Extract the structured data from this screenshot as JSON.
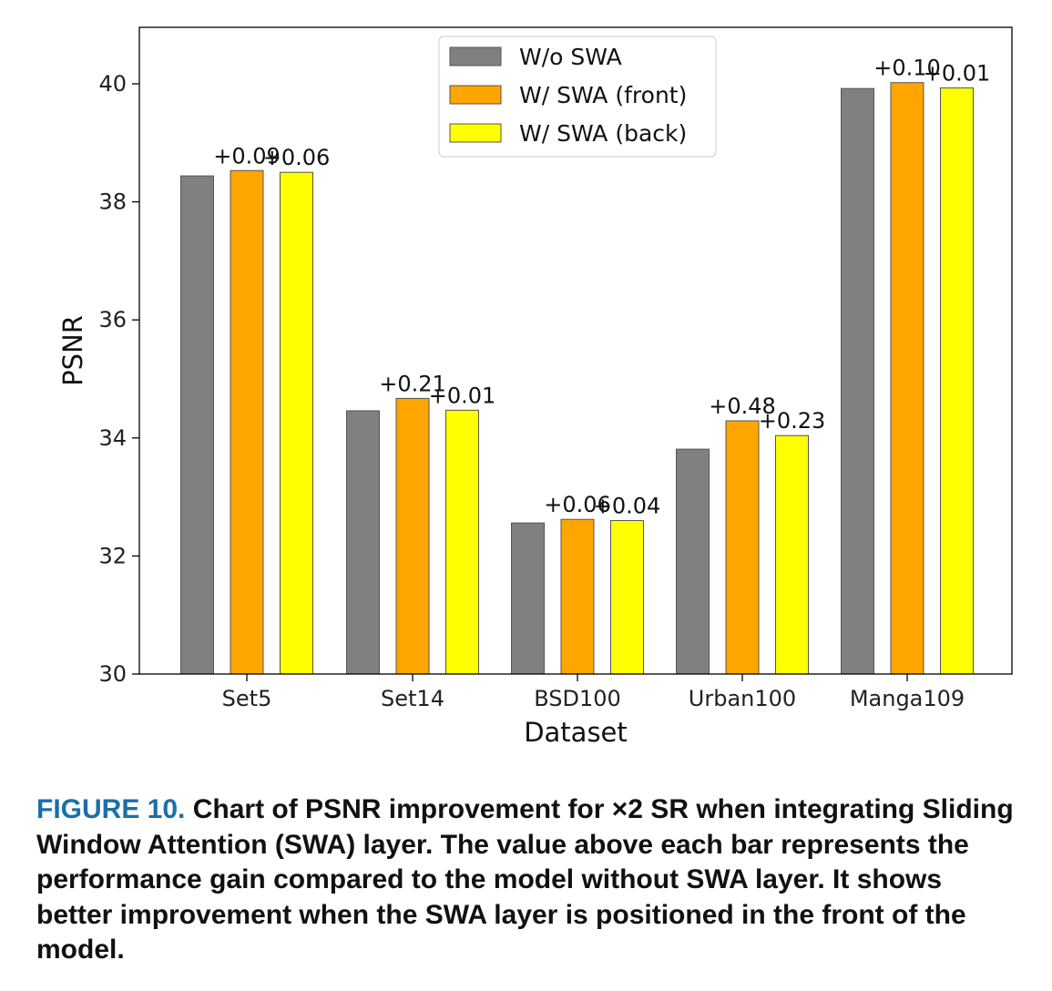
{
  "chart_data": {
    "type": "bar",
    "xlabel": "Dataset",
    "ylabel": "PSNR",
    "ylim": [
      30,
      41
    ],
    "yticks": [
      "30",
      "32",
      "34",
      "36",
      "38",
      "40"
    ],
    "categories": [
      "Set5",
      "Set14",
      "BSD100",
      "Urban100",
      "Manga109"
    ],
    "series": [
      {
        "name": "W/o SWA",
        "color": "#808080",
        "values": [
          38.44,
          34.46,
          32.56,
          33.81,
          39.92
        ]
      },
      {
        "name": "W/ SWA (front)",
        "color": "#ffa500",
        "values": [
          38.53,
          34.67,
          32.62,
          34.29,
          40.02
        ]
      },
      {
        "name": "W/ SWA (back)",
        "color": "#ffff00",
        "values": [
          38.5,
          34.47,
          32.6,
          34.04,
          39.93
        ]
      }
    ],
    "annotations": {
      "front": [
        "+0.09",
        "+0.21",
        "+0.06",
        "+0.48",
        "+0.10"
      ],
      "back": [
        "+0.06",
        "+0.01",
        "+0.04",
        "+0.23",
        "+0.01"
      ]
    },
    "legend_position": "top-center",
    "grid": false
  },
  "caption": {
    "label": "FIGURE 10.",
    "text": "Chart of PSNR improvement for ×2 SR when integrating Sliding Window Attention (SWA) layer. The value above each bar represents the performance gain compared to the model without SWA layer. It shows better improvement when the SWA layer is positioned in the front of the model."
  }
}
